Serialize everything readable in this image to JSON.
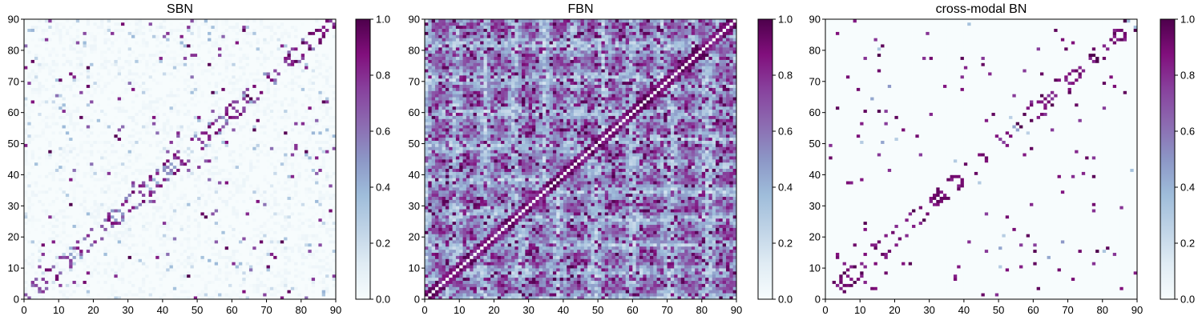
{
  "figure": {
    "colormap": "BuPu",
    "colormap_stops": [
      "#f7fcfd",
      "#e0ecf4",
      "#bfd3e6",
      "#9ebcda",
      "#8c96c6",
      "#8c6bb1",
      "#88419d",
      "#810f7c",
      "#4d004b"
    ]
  },
  "chart_data": [
    {
      "type": "heatmap",
      "title": "SBN",
      "xlabel": "",
      "ylabel": "",
      "xlim": [
        0,
        90
      ],
      "ylim": [
        0,
        90
      ],
      "xticks": [
        0,
        10,
        20,
        30,
        40,
        50,
        60,
        70,
        80,
        90
      ],
      "yticks": [
        0,
        10,
        20,
        30,
        40,
        50,
        60,
        70,
        80,
        90
      ],
      "grid": false,
      "matrix_size": 90,
      "colorbar": {
        "vmin": 0.0,
        "vmax": 1.0,
        "ticks": [
          "0.0",
          "0.2",
          "0.4",
          "0.6",
          "0.8",
          "1.0"
        ]
      },
      "description": "Symmetric 90x90 structural connectivity; mostly near 0 with sparse strong connections concentrated along the diagonal"
    },
    {
      "type": "heatmap",
      "title": "FBN",
      "xlabel": "",
      "ylabel": "",
      "xlim": [
        0,
        90
      ],
      "ylim": [
        0,
        90
      ],
      "xticks": [
        0,
        10,
        20,
        30,
        40,
        50,
        60,
        70,
        80,
        90
      ],
      "yticks": [
        0,
        10,
        20,
        30,
        40,
        50,
        60,
        70,
        80,
        90
      ],
      "grid": false,
      "matrix_size": 90,
      "colorbar": {
        "vmin": 0.0,
        "vmax": 1.0,
        "ticks": [
          "0.0",
          "0.2",
          "0.4",
          "0.6",
          "0.8",
          "1.0"
        ]
      },
      "description": "Symmetric 90x90 functional connectivity; dense, with mid-to-high values and a strong diagonal band"
    },
    {
      "type": "heatmap",
      "title": "cross-modal BN",
      "xlabel": "",
      "ylabel": "",
      "xlim": [
        0,
        90
      ],
      "ylim": [
        0,
        90
      ],
      "xticks": [
        0,
        10,
        20,
        30,
        40,
        50,
        60,
        70,
        80,
        90
      ],
      "yticks": [
        0,
        10,
        20,
        30,
        40,
        50,
        60,
        70,
        80,
        90
      ],
      "grid": false,
      "matrix_size": 90,
      "colorbar": {
        "vmin": 0.0,
        "vmax": 1.0,
        "ticks": [
          "0.0",
          "0.2",
          "0.4",
          "0.6",
          "0.8",
          "1.0"
        ]
      },
      "description": "Symmetric 90x90 fused connectivity; very sparse, mostly 0 with isolated strong connections"
    }
  ]
}
